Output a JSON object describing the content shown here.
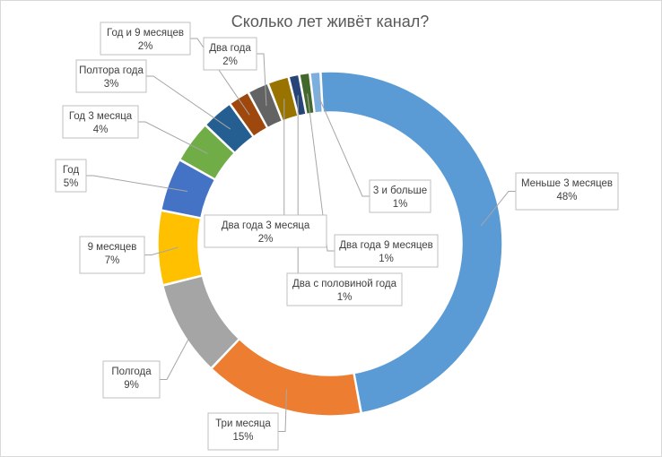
{
  "chart_data": {
    "type": "pie",
    "style": "doughnut",
    "title": "Сколько лет живёт канал?",
    "legend": "none",
    "slices": [
      {
        "label": "Меньше 3 месяцев",
        "value": 48,
        "value_text": "48%",
        "color": "#5b9bd5"
      },
      {
        "label": "Три месяца",
        "value": 15,
        "value_text": "15%",
        "color": "#ed7d31"
      },
      {
        "label": "Полгода",
        "value": 9,
        "value_text": "9%",
        "color": "#a5a5a5"
      },
      {
        "label": "9 месяцев",
        "value": 7,
        "value_text": "7%",
        "color": "#ffc000"
      },
      {
        "label": "Год",
        "value": 5,
        "value_text": "5%",
        "color": "#4472c4"
      },
      {
        "label": "Год 3 месяца",
        "value": 4,
        "value_text": "4%",
        "color": "#70ad47"
      },
      {
        "label": "Полтора года",
        "value": 3,
        "value_text": "3%",
        "color": "#255e91"
      },
      {
        "label": "Год и 9 месяцев",
        "value": 2,
        "value_text": "2%",
        "color": "#9e480e"
      },
      {
        "label": "Два года",
        "value": 2,
        "value_text": "2%",
        "color": "#636363"
      },
      {
        "label": "Два года 3 месяца",
        "value": 2,
        "value_text": "2%",
        "color": "#997300"
      },
      {
        "label": "Два с половиной года",
        "value": 1,
        "value_text": "1%",
        "color": "#264478"
      },
      {
        "label": "Два года 9 месяцев",
        "value": 1,
        "value_text": "1%",
        "color": "#43682b"
      },
      {
        "label": "3 и больше",
        "value": 1,
        "value_text": "1%",
        "color": "#7cafdd"
      }
    ]
  }
}
